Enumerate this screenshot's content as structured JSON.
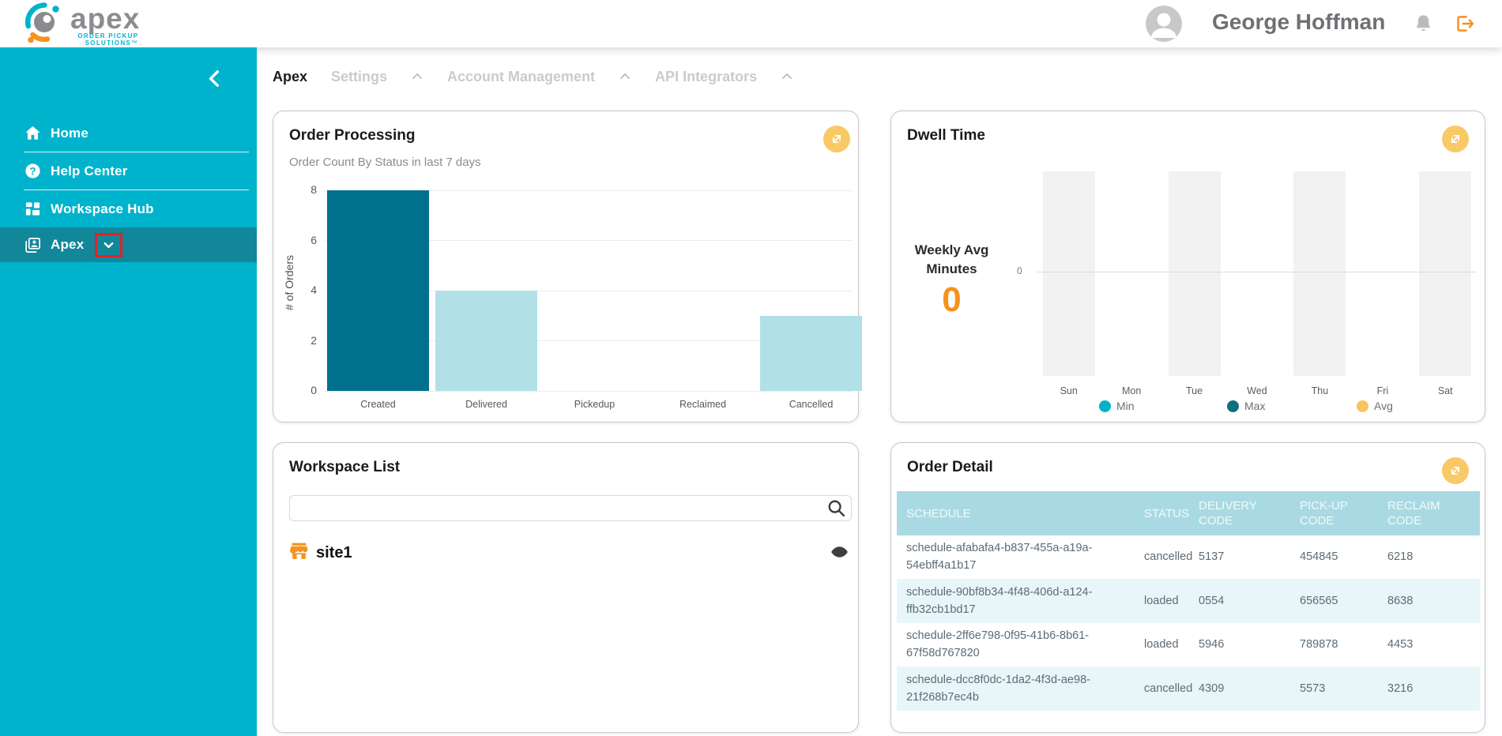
{
  "header": {
    "logo": {
      "brand": "apex",
      "tagline_line1": "ORDER PICKUP",
      "tagline_line2": "SOLUTIONS™"
    },
    "user_name": "George Hoffman"
  },
  "sidebar": {
    "items": [
      {
        "label": "Home"
      },
      {
        "label": "Help Center"
      },
      {
        "label": "Workspace Hub"
      },
      {
        "label": "Apex",
        "selected": true,
        "annotated": true
      }
    ]
  },
  "breadcrumb": {
    "items": [
      {
        "label": "Apex",
        "active": true
      },
      {
        "label": "Settings"
      },
      {
        "label": "Account Management"
      },
      {
        "label": "API Integrators"
      }
    ]
  },
  "order_processing": {
    "title": "Order Processing",
    "subtitle": "Order Count By Status in last 7 days",
    "chart_data": {
      "type": "bar",
      "categories": [
        "Created",
        "Delivered",
        "Pickedup",
        "Reclaimed",
        "Cancelled"
      ],
      "values": [
        8,
        4,
        0,
        0,
        3
      ],
      "title": "Order Count By Status in last 7 days",
      "xlabel": "",
      "ylabel": "# of Orders",
      "ylim": [
        0,
        8
      ],
      "yticks": [
        0,
        2,
        4,
        6,
        8
      ],
      "grid": true,
      "legend_position": "none",
      "bar_colors": [
        "#00708f",
        "#b2e0e7",
        "#b2e0e7",
        "#b2e0e7",
        "#b2e0e7"
      ]
    }
  },
  "dwell_time": {
    "title": "Dwell Time",
    "stat": {
      "label_line1": "Weekly Avg",
      "label_line2": "Minutes",
      "value": "0"
    },
    "chart_data": {
      "type": "bar",
      "categories": [
        "Sun",
        "Mon",
        "Tue",
        "Wed",
        "Thu",
        "Fri",
        "Sat"
      ],
      "series": [
        {
          "name": "Min",
          "color": "#00b1c8",
          "values": [
            0,
            0,
            0,
            0,
            0,
            0,
            0
          ]
        },
        {
          "name": "Max",
          "color": "#0e6f80",
          "values": [
            0,
            0,
            0,
            0,
            0,
            0,
            0
          ]
        },
        {
          "name": "Avg",
          "color": "#f7c45e",
          "values": [
            0,
            0,
            0,
            0,
            0,
            0,
            0
          ]
        }
      ],
      "weekly_avg_minutes": 0,
      "yticks": [
        0
      ],
      "grid": true,
      "legend_position": "bottom",
      "column_band_color": "#f2f2f2"
    }
  },
  "workspace_list": {
    "title": "Workspace List",
    "search": {
      "value": "",
      "placeholder": ""
    },
    "items": [
      {
        "name": "site1"
      }
    ]
  },
  "order_detail": {
    "title": "Order Detail",
    "columns": [
      "SCHEDULE",
      "STATUS",
      "DELIVERY CODE",
      "PICK-UP CODE",
      "RECLAIM CODE"
    ],
    "rows": [
      {
        "schedule": "schedule-afabafa4-b837-455a-a19a-54ebff4a1b17",
        "status": "cancelled",
        "delivery_code": "5137",
        "pickup_code": "454845",
        "reclaim_code": "6218"
      },
      {
        "schedule": "schedule-90bf8b34-4f48-406d-a124-ffb32cb1bd17",
        "status": "loaded",
        "delivery_code": "0554",
        "pickup_code": "656565",
        "reclaim_code": "8638"
      },
      {
        "schedule": "schedule-2ff6e798-0f95-41b6-8b61-67f58d767820",
        "status": "loaded",
        "delivery_code": "5946",
        "pickup_code": "789878",
        "reclaim_code": "4453"
      },
      {
        "schedule": "schedule-dcc8f0dc-1da2-4f3d-ae98-21f268b7ec4b",
        "status": "cancelled",
        "delivery_code": "4309",
        "pickup_code": "5573",
        "reclaim_code": "3216"
      }
    ]
  },
  "colors": {
    "sidebar_teal": "#00b3cd",
    "sidebar_selected": "#12879a",
    "accent_orange": "#f5921e",
    "expand_amber": "#f9c967",
    "table_header_bg": "#a9dae3",
    "table_alt_row": "#e9f6f9",
    "annotation_red": "#e02328"
  }
}
